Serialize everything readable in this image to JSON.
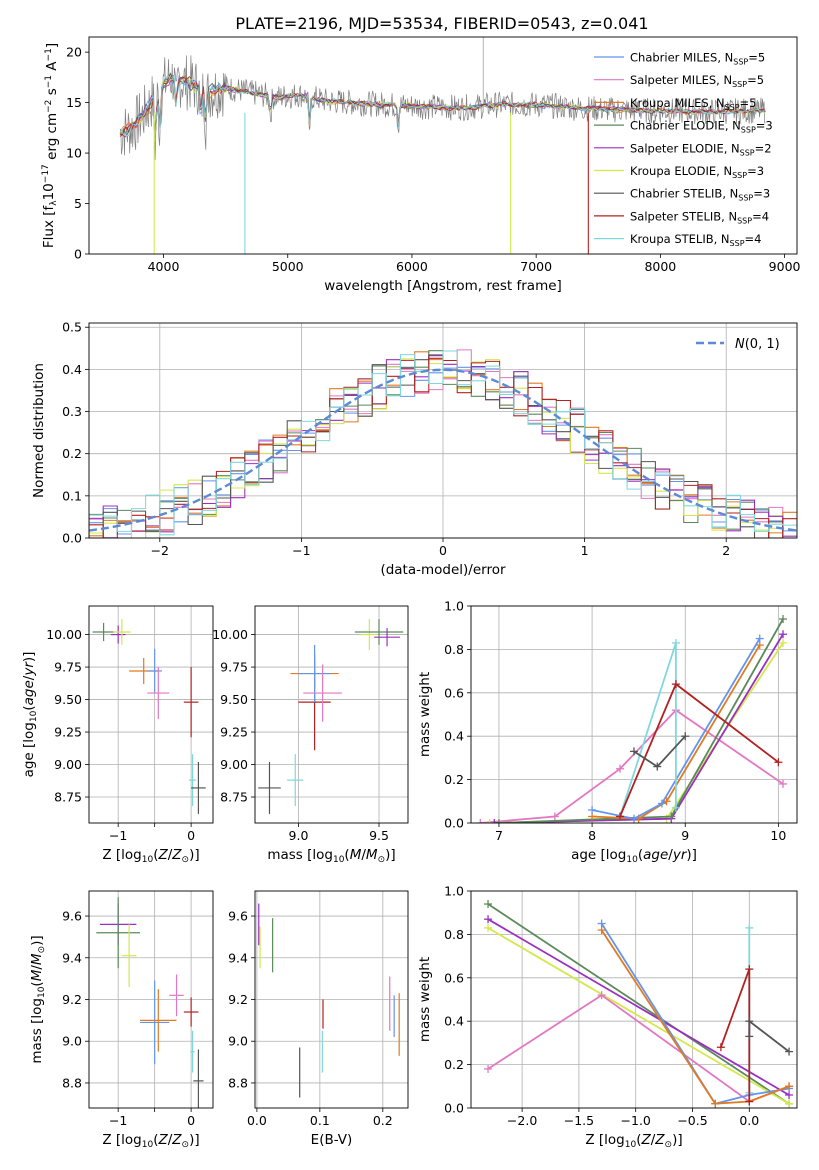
{
  "title": "PLATE=2196, MJD=53534, FIBERID=0543, z=0.041",
  "colors": {
    "Chabrier MILES": "#6495ed",
    "Salpeter MILES": "#e377c2",
    "Kroupa MILES": "#e07b22",
    "Chabrier ELODIE": "#5a8a5a",
    "Salpeter ELODIE": "#9b30c0",
    "Kroupa ELODIE": "#d4e84a",
    "Chabrier STELIB": "#555555",
    "Salpeter STELIB": "#b22222",
    "Kroupa STELIB": "#7fd8de",
    "observed": "#808080",
    "normal": "#5b8bd6"
  },
  "chart_data": [
    {
      "id": "spectrum",
      "type": "line",
      "xlabel": "wavelength [Angstrom, rest frame]",
      "ylabel": "Flux [f_λ10^-17 erg cm^-2 s^-1 A^-1]",
      "xlim": [
        3400,
        9100
      ],
      "ylim": [
        0,
        21.5
      ],
      "xticks": [
        4000,
        5000,
        6000,
        7000,
        8000,
        9000
      ],
      "yticks": [
        0,
        5,
        10,
        15,
        20
      ],
      "legend_position": "upper-right",
      "legend": [
        {
          "name": "Chabrier MILES",
          "nssp": "5"
        },
        {
          "name": "Salpeter MILES",
          "nssp": "5"
        },
        {
          "name": "Kroupa MILES",
          "nssp": "5"
        },
        {
          "name": "Chabrier ELODIE",
          "nssp": "3"
        },
        {
          "name": "Salpeter ELODIE",
          "nssp": "2"
        },
        {
          "name": "Kroupa ELODIE",
          "nssp": "3"
        },
        {
          "name": "Chabrier STELIB",
          "nssp": "3"
        },
        {
          "name": "Salpeter STELIB",
          "nssp": "4"
        },
        {
          "name": "Kroupa STELIB",
          "nssp": "4"
        }
      ],
      "approx_continuum": [
        [
          3650,
          12
        ],
        [
          3750,
          12.5
        ],
        [
          3850,
          14
        ],
        [
          3950,
          16
        ],
        [
          4050,
          17.5
        ],
        [
          4200,
          17
        ],
        [
          4350,
          16
        ],
        [
          4500,
          16.5
        ],
        [
          4700,
          16
        ],
        [
          4900,
          15.5
        ],
        [
          5100,
          15.8
        ],
        [
          5300,
          15.2
        ],
        [
          5500,
          15
        ],
        [
          5800,
          14.8
        ],
        [
          6100,
          14.6
        ],
        [
          6400,
          14.5
        ],
        [
          6700,
          14.8
        ],
        [
          7000,
          14.8
        ],
        [
          7300,
          14.5
        ],
        [
          7600,
          14.3
        ],
        [
          8000,
          14.2
        ],
        [
          8400,
          14.1
        ],
        [
          8800,
          14.2
        ]
      ]
    },
    {
      "id": "residual-hist",
      "type": "histogram",
      "xlabel": "(data-model)/error",
      "ylabel": "Normed distribution",
      "xlim": [
        -2.5,
        2.5
      ],
      "ylim": [
        0,
        0.51
      ],
      "xticks": [
        -2,
        -1,
        0,
        1,
        2
      ],
      "yticks": [
        0,
        0.1,
        0.2,
        0.3,
        0.4,
        0.5
      ],
      "legend": "N(0,1)",
      "grid": true
    },
    {
      "id": "age-vs-Z",
      "type": "errorbar",
      "xlabel": "Z [log10(Z/Z⊙)]",
      "ylabel": "age [log10(age/yr)]",
      "xlim": [
        -1.4,
        0.3
      ],
      "ylim": [
        8.55,
        10.22
      ],
      "xticks": [
        -1,
        -0.5,
        0
      ],
      "xticklabels": [
        "−1",
        "",
        "0"
      ],
      "yticks": [
        8.75,
        9.0,
        9.25,
        9.5,
        9.75,
        10.0
      ],
      "points": [
        {
          "s": "Chabrier ELODIE",
          "x": -1.2,
          "y": 10.02,
          "xe": 0.15,
          "ye": 0.07
        },
        {
          "s": "Salpeter ELODIE",
          "x": -1.0,
          "y": 10.0,
          "xe": 0.1,
          "ye": 0.07
        },
        {
          "s": "Kroupa ELODIE",
          "x": -0.95,
          "y": 10.02,
          "xe": 0.12,
          "ye": 0.1
        },
        {
          "s": "Kroupa MILES",
          "x": -0.65,
          "y": 9.72,
          "xe": 0.2,
          "ye": 0.1
        },
        {
          "s": "Chabrier MILES",
          "x": -0.5,
          "y": 9.72,
          "xe": 0.1,
          "ye": 0.17
        },
        {
          "s": "Salpeter MILES",
          "x": -0.45,
          "y": 9.55,
          "xe": 0.15,
          "ye": 0.2
        },
        {
          "s": "Salpeter STELIB",
          "x": 0.0,
          "y": 9.48,
          "xe": 0.1,
          "ye": 0.27
        },
        {
          "s": "Kroupa STELIB",
          "x": 0.02,
          "y": 8.88,
          "xe": 0.05,
          "ye": 0.2
        },
        {
          "s": "Chabrier STELIB",
          "x": 0.1,
          "y": 8.82,
          "xe": 0.1,
          "ye": 0.2
        }
      ]
    },
    {
      "id": "age-vs-mass",
      "type": "errorbar",
      "xlabel": "mass [log10(M/M⊙)]",
      "ylabel": "",
      "xlim": [
        8.73,
        9.68
      ],
      "ylim": [
        8.55,
        10.22
      ],
      "xticks": [
        9.0,
        9.5
      ],
      "yticks": [
        8.75,
        9.0,
        9.25,
        9.5,
        9.75,
        10.0
      ],
      "points": [
        {
          "s": "Chabrier STELIB",
          "x": 8.82,
          "y": 8.82,
          "xe": 0.07,
          "ye": 0.2
        },
        {
          "s": "Kroupa STELIB",
          "x": 8.98,
          "y": 8.88,
          "xe": 0.05,
          "ye": 0.2
        },
        {
          "s": "Salpeter STELIB",
          "x": 9.1,
          "y": 9.48,
          "xe": 0.1,
          "ye": 0.37
        },
        {
          "s": "Kroupa MILES",
          "x": 9.1,
          "y": 9.7,
          "xe": 0.15,
          "ye": 0.1
        },
        {
          "s": "Chabrier MILES",
          "x": 9.1,
          "y": 9.7,
          "xe": 0.1,
          "ye": 0.22
        },
        {
          "s": "Salpeter MILES",
          "x": 9.15,
          "y": 9.55,
          "xe": 0.12,
          "ye": 0.22
        },
        {
          "s": "Kroupa ELODIE",
          "x": 9.44,
          "y": 10.0,
          "xe": 0.05,
          "ye": 0.12
        },
        {
          "s": "Chabrier ELODIE",
          "x": 9.5,
          "y": 10.02,
          "xe": 0.15,
          "ye": 0.1
        },
        {
          "s": "Salpeter ELODIE",
          "x": 9.55,
          "y": 9.98,
          "xe": 0.08,
          "ye": 0.07
        }
      ]
    },
    {
      "id": "weight-vs-age",
      "type": "line",
      "xlabel": "age [log10(age/yr)]",
      "ylabel": "mass weight",
      "xlim": [
        6.7,
        10.2
      ],
      "ylim": [
        0,
        1
      ],
      "xticks": [
        7,
        8,
        9,
        10
      ],
      "yticks": [
        0,
        0.2,
        0.4,
        0.6,
        0.8,
        1.0
      ],
      "series": [
        {
          "s": "Salpeter MILES",
          "x": [
            6.8,
            7.6,
            8.3,
            8.9,
            10.05
          ],
          "y": [
            0.0,
            0.03,
            0.25,
            0.52,
            0.18
          ]
        },
        {
          "s": "Kroupa ELODIE",
          "x": [
            6.9,
            8.8,
            10.05
          ],
          "y": [
            0.0,
            0.02,
            0.83
          ]
        },
        {
          "s": "Salpeter ELODIE",
          "x": [
            6.95,
            8.85,
            10.05
          ],
          "y": [
            0.0,
            0.02,
            0.87
          ]
        },
        {
          "s": "Chabrier ELODIE",
          "x": [
            7.0,
            8.85,
            10.05
          ],
          "y": [
            0.0,
            0.03,
            0.94
          ]
        },
        {
          "s": "Kroupa MILES",
          "x": [
            8.0,
            8.5,
            8.8,
            9.8
          ],
          "y": [
            0.03,
            0.02,
            0.1,
            0.82
          ]
        },
        {
          "s": "Chabrier MILES",
          "x": [
            8.0,
            8.45,
            8.75,
            9.8
          ],
          "y": [
            0.06,
            0.02,
            0.09,
            0.85
          ]
        },
        {
          "s": "Kroupa STELIB",
          "x": [
            8.3,
            8.9,
            8.9
          ],
          "y": [
            0.03,
            0.83,
            0.07
          ]
        },
        {
          "s": "Salpeter STELIB",
          "x": [
            8.3,
            8.9,
            10.0
          ],
          "y": [
            0.03,
            0.64,
            0.28
          ]
        },
        {
          "s": "Chabrier STELIB",
          "x": [
            8.45,
            8.7,
            9.0
          ],
          "y": [
            0.33,
            0.26,
            0.4
          ]
        }
      ]
    },
    {
      "id": "mass-vs-Z",
      "type": "errorbar",
      "xlabel": "Z [log10(Z/Z⊙)]",
      "ylabel": "mass [log10(M/M⊙)]",
      "xlim": [
        -1.4,
        0.3
      ],
      "ylim": [
        8.68,
        9.72
      ],
      "xticks": [
        -1,
        -0.5,
        0
      ],
      "xticklabels": [
        "−1",
        "",
        "0"
      ],
      "yticks": [
        8.8,
        9.0,
        9.2,
        9.4,
        9.6
      ],
      "points": [
        {
          "s": "Salpeter ELODIE",
          "x": -1.0,
          "y": 9.56,
          "xe": 0.25,
          "ye": 0.1
        },
        {
          "s": "Chabrier ELODIE",
          "x": -1.0,
          "y": 9.52,
          "xe": 0.3,
          "ye": 0.17
        },
        {
          "s": "Kroupa ELODIE",
          "x": -0.85,
          "y": 9.41,
          "xe": 0.1,
          "ye": 0.15
        },
        {
          "s": "Salpeter MILES",
          "x": -0.2,
          "y": 9.22,
          "xe": 0.1,
          "ye": 0.1
        },
        {
          "s": "Chabrier MILES",
          "x": -0.5,
          "y": 9.09,
          "xe": 0.2,
          "ye": 0.2
        },
        {
          "s": "Kroupa MILES",
          "x": -0.45,
          "y": 9.1,
          "xe": 0.25,
          "ye": 0.15
        },
        {
          "s": "Salpeter STELIB",
          "x": 0.0,
          "y": 9.14,
          "xe": 0.1,
          "ye": 0.07
        },
        {
          "s": "Kroupa STELIB",
          "x": 0.02,
          "y": 8.95,
          "xe": 0.03,
          "ye": 0.1
        },
        {
          "s": "Chabrier STELIB",
          "x": 0.1,
          "y": 8.81,
          "xe": 0.07,
          "ye": 0.15
        }
      ]
    },
    {
      "id": "mass-vs-ebv",
      "type": "errorbar",
      "xlabel": "E(B-V)",
      "ylabel": "",
      "xlim": [
        -0.003,
        0.24
      ],
      "ylim": [
        8.68,
        9.72
      ],
      "xticks": [
        0.0,
        0.1,
        0.2
      ],
      "yticks": [
        8.8,
        9.0,
        9.2,
        9.4,
        9.6
      ],
      "points": [
        {
          "s": "Salpeter ELODIE",
          "x": 0.003,
          "y": 9.56,
          "ye": 0.1
        },
        {
          "s": "Kroupa ELODIE",
          "x": 0.005,
          "y": 9.45,
          "ye": 0.1
        },
        {
          "s": "Chabrier ELODIE",
          "x": 0.025,
          "y": 9.46,
          "ye": 0.13
        },
        {
          "s": "Chabrier STELIB",
          "x": 0.068,
          "y": 8.85,
          "ye": 0.12
        },
        {
          "s": "Salpeter STELIB",
          "x": 0.105,
          "y": 9.13,
          "ye": 0.07
        },
        {
          "s": "Kroupa STELIB",
          "x": 0.104,
          "y": 8.95,
          "ye": 0.1
        },
        {
          "s": "Salpeter MILES",
          "x": 0.211,
          "y": 9.18,
          "ye": 0.13
        },
        {
          "s": "Chabrier MILES",
          "x": 0.218,
          "y": 9.12,
          "ye": 0.1
        },
        {
          "s": "Kroupa MILES",
          "x": 0.226,
          "y": 9.08,
          "ye": 0.15
        }
      ]
    },
    {
      "id": "weight-vs-Z",
      "type": "line",
      "xlabel": "Z [log10(Z/Z⊙)]",
      "ylabel": "mass weight",
      "xlim": [
        -2.45,
        0.42
      ],
      "ylim": [
        0,
        1
      ],
      "xticks": [
        -2.0,
        -1.5,
        -1.0,
        -0.5,
        0.0
      ],
      "yticks": [
        0,
        0.2,
        0.4,
        0.6,
        0.8,
        1.0
      ],
      "series": [
        {
          "s": "Chabrier ELODIE",
          "x": [
            -2.3,
            0.35
          ],
          "y": [
            0.94,
            0.02
          ]
        },
        {
          "s": "Salpeter ELODIE",
          "x": [
            -2.3,
            0.35
          ],
          "y": [
            0.87,
            0.06
          ]
        },
        {
          "s": "Kroupa ELODIE",
          "x": [
            -2.3,
            0.35
          ],
          "y": [
            0.83,
            0.02
          ]
        },
        {
          "s": "Salpeter MILES",
          "x": [
            -2.3,
            -1.3,
            0.0,
            0.35
          ],
          "y": [
            0.18,
            0.52,
            0.03,
            0.1
          ]
        },
        {
          "s": "Chabrier MILES",
          "x": [
            -1.3,
            -0.3,
            0.0,
            0.35
          ],
          "y": [
            0.85,
            0.02,
            0.06,
            0.09
          ]
        },
        {
          "s": "Kroupa MILES",
          "x": [
            -1.3,
            -0.3,
            0.0,
            0.35
          ],
          "y": [
            0.82,
            0.02,
            0.03,
            0.1
          ]
        },
        {
          "s": "Kroupa STELIB",
          "x": [
            0.0,
            0.0
          ],
          "y": [
            0.83,
            0.07
          ]
        },
        {
          "s": "Salpeter STELIB",
          "x": [
            -0.25,
            0.0,
            0.0
          ],
          "y": [
            0.28,
            0.64,
            0.03
          ]
        },
        {
          "s": "Chabrier STELIB",
          "x": [
            0.0,
            0.0,
            0.35
          ],
          "y": [
            0.33,
            0.4,
            0.26
          ]
        }
      ]
    }
  ]
}
